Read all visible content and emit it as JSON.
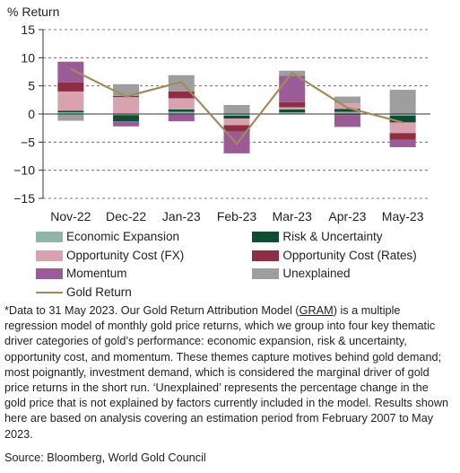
{
  "chart_data": {
    "type": "bar",
    "stacked": true,
    "ylabel": "% Return",
    "ylim": [
      -15,
      15
    ],
    "yticks": [
      15,
      10,
      5,
      0,
      -5,
      -10,
      -15
    ],
    "grid": "dashed horizontal",
    "legend_position": "bottom",
    "categories": [
      "Nov-22",
      "Dec-22",
      "Jan-23",
      "Feb-23",
      "Mar-23",
      "Apr-23",
      "May-23"
    ],
    "series": [
      {
        "name": "Economic Expansion",
        "color": "#8EB5A8",
        "values": [
          0.3,
          -0.2,
          0.4,
          -0.3,
          0.3,
          0.4,
          -0.3
        ]
      },
      {
        "name": "Risk & Uncertainty",
        "color": "#0E4D33",
        "values": [
          0.3,
          -1.1,
          0.4,
          -0.5,
          0.5,
          0.5,
          -1.2
        ]
      },
      {
        "name": "Opportunity Cost (FX)",
        "color": "#D8A3AE",
        "values": [
          3.4,
          3.0,
          2.0,
          -1.2,
          0.4,
          1.0,
          -1.9
        ]
      },
      {
        "name": "Opportunity Cost (Rates)",
        "color": "#8E2E45",
        "values": [
          1.6,
          0.2,
          1.2,
          -1.1,
          0.9,
          -0.2,
          -1.2
        ]
      },
      {
        "name": "Momentum",
        "color": "#9B5B96",
        "values": [
          3.7,
          -0.9,
          -1.3,
          -3.9,
          4.7,
          -2.1,
          -1.3
        ]
      },
      {
        "name": "Unexplained",
        "color": "#9E9E9E",
        "values": [
          -1.2,
          2.1,
          2.9,
          1.6,
          0.9,
          1.2,
          4.3
        ]
      }
    ],
    "line_series": {
      "name": "Gold Return",
      "color": "#A38A5A",
      "values": [
        8.0,
        3.1,
        5.7,
        -5.3,
        7.3,
        1.1,
        -1.5
      ]
    }
  },
  "footnote": {
    "before_link": "*Data to 31 May 2023. Our Gold Return Attribution Model (",
    "link": "GRAM",
    "after_link": ") is a multiple regression model of monthly gold price returns, which we group into four key thematic driver categories of gold’s performance: economic expansion, risk & uncertainty, opportunity cost, and momentum. These themes capture motives behind gold demand; most poignantly, investment demand, which is considered the marginal driver of gold price returns in the short run. ‘Unexplained’ represents the percentage change in the gold price that is not explained by factors currently included in the model. Results shown here are based on analysis covering an estimation period from February 2007 to May 2023."
  },
  "source": "Source: Bloomberg, World Gold Council"
}
